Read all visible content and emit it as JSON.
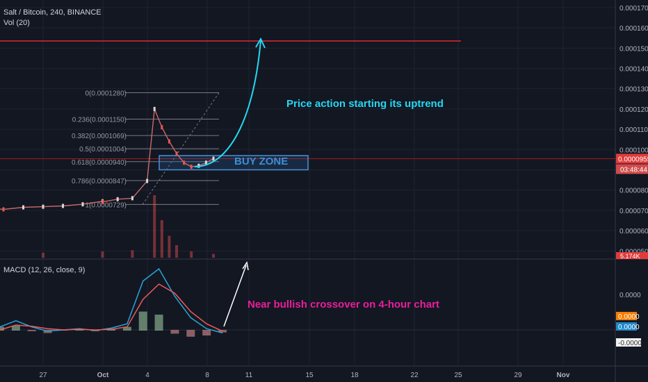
{
  "header": {
    "symbol_line": "Salt / Bitcoin, 240, BINANCE",
    "volume_line": "Vol (20)",
    "macd_line": "MACD (12, 26, close, 9)"
  },
  "annotations": {
    "uptrend": "Price action starting its uptrend",
    "buy_zone": "BUY ZONE",
    "crossover": "Near bullish crossover on 4-hour chart"
  },
  "price_axis": {
    "ticks": [
      "0.0001700",
      "0.0001600",
      "0.0001500",
      "0.0001400",
      "0.0001300",
      "0.0001200",
      "0.0001100",
      "0.0001000",
      "0.0000900",
      "0.0000800",
      "0.0000700",
      "0.0000600",
      "0.0000500"
    ],
    "current_price_label": "0.0000955",
    "countdown_label": "03:48:44",
    "volume_label": "5.174K"
  },
  "macd_axis": {
    "zero_label": "0.0000",
    "macd_label": "0.0000",
    "signal_label": "0.0000",
    "hist_label": "-0.0000"
  },
  "time_axis": {
    "labels": [
      "27",
      "Oct",
      "4",
      "8",
      "11",
      "15",
      "18",
      "22",
      "25",
      "29",
      "Nov"
    ]
  },
  "fib_levels": [
    {
      "ratio": "0",
      "label": "0(0.0001280)",
      "price": 0.000128
    },
    {
      "ratio": "0.236",
      "label": "0.236(0.0001150)",
      "price": 0.000115
    },
    {
      "ratio": "0.382",
      "label": "0.382(0.0001069)",
      "price": 0.0001069
    },
    {
      "ratio": "0.5",
      "label": "0.5(0.0001004)",
      "price": 0.0001004
    },
    {
      "ratio": "0.618",
      "label": "0.618(0.0000940)",
      "price": 9.4e-05
    },
    {
      "ratio": "0.786",
      "label": "0.786(0.0000847)",
      "price": 8.47e-05
    },
    {
      "ratio": "1",
      "label": "1(0.0000729)",
      "price": 7.29e-05
    }
  ],
  "chart_data": {
    "type": "line",
    "title": "Salt / Bitcoin, 240, BINANCE",
    "y_range": [
      4.6e-05,
      0.000172
    ],
    "target_level": 0.0001535,
    "current_price": 9.55e-05,
    "buy_zone_range": [
      9e-05,
      9.7e-05
    ],
    "x_date_range": [
      "Sep 24",
      "Nov 4"
    ],
    "price_series": [
      {
        "x": "Sep 24",
        "y": 7.12e-05
      },
      {
        "x": "Sep 25",
        "y": 7.05e-05
      },
      {
        "x": "Sep 26",
        "y": 7.15e-05
      },
      {
        "x": "Sep 27",
        "y": 7.18e-05
      },
      {
        "x": "Sep 28",
        "y": 7.22e-05
      },
      {
        "x": "Sep 29",
        "y": 7.3e-05
      },
      {
        "x": "Sep 30",
        "y": 7.45e-05
      },
      {
        "x": "Oct 1",
        "y": 7.42e-05
      },
      {
        "x": "Oct 2",
        "y": 7.55e-05
      },
      {
        "x": "Oct 3",
        "y": 7.6e-05
      },
      {
        "x": "Oct 4",
        "y": 8.45e-05
      },
      {
        "x": "Oct 4.5",
        "y": 0.00012
      },
      {
        "x": "Oct 5",
        "y": 0.000111
      },
      {
        "x": "Oct 5.5",
        "y": 0.000104
      },
      {
        "x": "Oct 6",
        "y": 9.8e-05
      },
      {
        "x": "Oct 6.5",
        "y": 9.35e-05
      },
      {
        "x": "Oct 7",
        "y": 9.15e-05
      },
      {
        "x": "Oct 7.5",
        "y": 9.2e-05
      },
      {
        "x": "Oct 8",
        "y": 9.35e-05
      },
      {
        "x": "Oct 8.5",
        "y": 9.55e-05
      }
    ],
    "volume_series": [
      {
        "x": "Sep 24",
        "y": 0.05
      },
      {
        "x": "Sep 27",
        "y": 0.08
      },
      {
        "x": "Sep 30",
        "y": 0.1
      },
      {
        "x": "Oct 3",
        "y": 0.12
      },
      {
        "x": "Oct 4.5",
        "y": 1.0
      },
      {
        "x": "Oct 5",
        "y": 0.6
      },
      {
        "x": "Oct 5.5",
        "y": 0.35
      },
      {
        "x": "Oct 6",
        "y": 0.2
      },
      {
        "x": "Oct 7",
        "y": 0.1
      },
      {
        "x": "Oct 8.5",
        "y": 0.06
      }
    ],
    "macd_series": {
      "macd": [
        0.05,
        0.15,
        0.05,
        -0.02,
        0.0,
        0.02,
        -0.01,
        0.03,
        0.1,
        0.8,
        1.0,
        0.55,
        0.2,
        0.02,
        -0.05
      ],
      "signal": [
        0.0,
        0.08,
        0.06,
        0.02,
        0.0,
        0.01,
        0.0,
        0.01,
        0.05,
        0.5,
        0.75,
        0.6,
        0.3,
        0.1,
        -0.02
      ]
    }
  }
}
